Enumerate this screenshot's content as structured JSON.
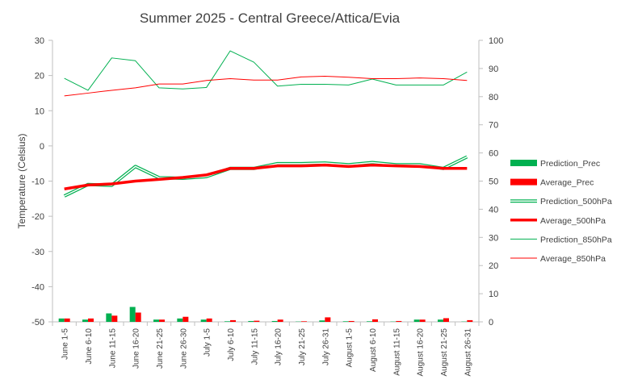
{
  "chart_data": {
    "type": "bar+line",
    "title": "Summer 2025 - Central Greece/Attica/Evia",
    "ylabel": "Temperature (Celsius)",
    "xlabel": "",
    "ylim": [
      -50,
      30
    ],
    "y_ticks": [
      30,
      20,
      10,
      0,
      -10,
      -20,
      -30,
      -40,
      -50
    ],
    "y2lim": [
      0,
      100
    ],
    "y2_ticks": [
      100,
      90,
      80,
      70,
      60,
      50,
      40,
      30,
      20,
      10,
      0
    ],
    "categories": [
      "June 1-5",
      "June 6-10",
      "June 11-15",
      "June 16-20",
      "June 21-25",
      "June 26-30",
      "July 1-5",
      "July 6-10",
      "July 11-15",
      "July 16-20",
      "July 21-25",
      "July 26-31",
      "August 1-5",
      "August 6-10",
      "August 11-15",
      "August 16-20",
      "August 21-25",
      "August 26-31"
    ],
    "grid": false,
    "legend_position": "right",
    "bar_series": [
      {
        "name": "Prediction_Prec",
        "axis": "right",
        "color": "#00b050",
        "values": [
          1.2,
          0.8,
          3.0,
          5.3,
          0.8,
          1.2,
          0.8,
          0.2,
          0.3,
          0.3,
          0.1,
          0.5,
          0.2,
          0.2,
          0.1,
          0.8,
          0.8,
          0.1
        ]
      },
      {
        "name": "Average_Prec",
        "axis": "right",
        "color": "#ff0000",
        "values": [
          1.2,
          1.2,
          2.2,
          3.3,
          0.8,
          1.8,
          1.2,
          0.6,
          0.4,
          0.8,
          0.2,
          1.6,
          0.3,
          0.9,
          0.3,
          0.8,
          1.3,
          0.6
        ]
      }
    ],
    "line_series": [
      {
        "name": "Prediction_500hPa",
        "axis": "right",
        "color": "#00b050",
        "style": "double",
        "values": [
          44.7,
          48.8,
          48.5,
          55.2,
          51.2,
          51.0,
          51.6,
          54.5,
          54.5,
          56.2,
          56.2,
          56.4,
          55.8,
          56.6,
          55.8,
          55.8,
          54.5,
          58.6
        ]
      },
      {
        "name": "Average_500hPa",
        "axis": "right",
        "color": "#ff0000",
        "style": "thick",
        "values": [
          47.2,
          48.6,
          49.0,
          50.0,
          50.6,
          51.3,
          52.2,
          54.5,
          54.5,
          55.4,
          55.4,
          55.7,
          55.2,
          55.7,
          55.4,
          55.2,
          54.5,
          54.5
        ]
      },
      {
        "name": "Prediction_850hPa",
        "axis": "left",
        "color": "#00b050",
        "style": "thin",
        "values": [
          19.2,
          15.8,
          25.0,
          24.2,
          16.5,
          16.2,
          16.6,
          27.0,
          23.8,
          17.0,
          17.5,
          17.5,
          17.3,
          19.0,
          17.3,
          17.3,
          17.3,
          21.0
        ]
      },
      {
        "name": "Average_850hPa",
        "axis": "left",
        "color": "#ff0000",
        "style": "thin",
        "values": [
          14.2,
          15.0,
          15.8,
          16.5,
          17.6,
          17.6,
          18.6,
          19.1,
          18.7,
          18.7,
          19.6,
          19.8,
          19.5,
          19.1,
          19.1,
          19.3,
          19.1,
          18.6
        ]
      }
    ]
  }
}
